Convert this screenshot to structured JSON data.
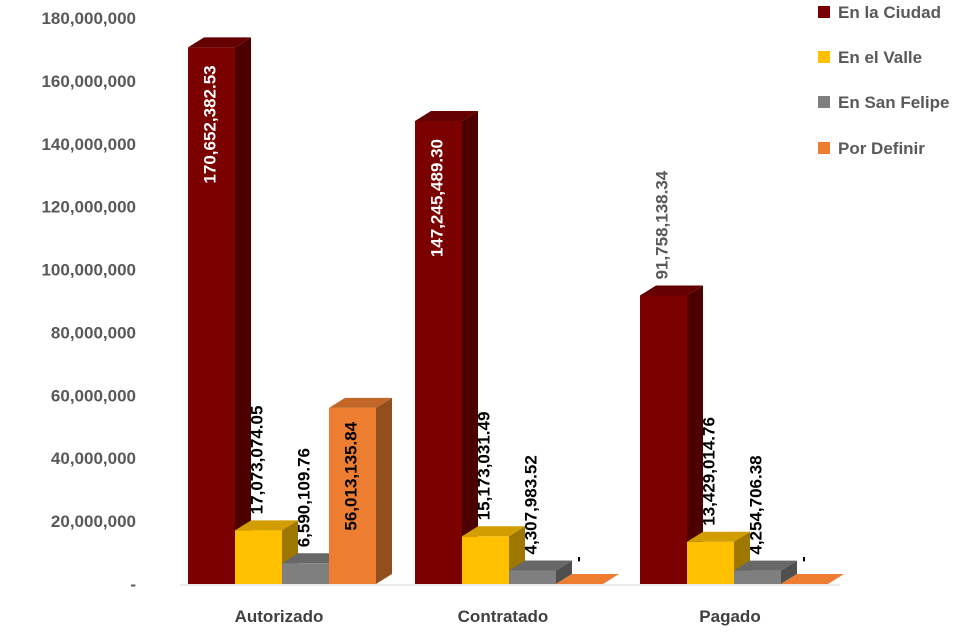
{
  "chart_data": {
    "type": "bar",
    "title": "",
    "xlabel": "",
    "ylabel": "",
    "ylim": [
      0,
      180000000
    ],
    "yticks": [
      {
        "value": 0,
        "label": "-"
      },
      {
        "value": 20000000,
        "label": "20,000,000"
      },
      {
        "value": 40000000,
        "label": "40,000,000"
      },
      {
        "value": 60000000,
        "label": "60,000,000"
      },
      {
        "value": 80000000,
        "label": "80,000,000"
      },
      {
        "value": 100000000,
        "label": "100,000,000"
      },
      {
        "value": 120000000,
        "label": "120,000,000"
      },
      {
        "value": 140000000,
        "label": "140,000,000"
      },
      {
        "value": 160000000,
        "label": "160,000,000"
      },
      {
        "value": 180000000,
        "label": "180,000,000"
      }
    ],
    "categories": [
      "Autorizado",
      "Contratado",
      "Pagado"
    ],
    "legend_position": "top-right",
    "grid": false,
    "series": [
      {
        "name": "En la Ciudad",
        "color": "#7B0000",
        "values": [
          170652382.53,
          147245489.3,
          91758138.34
        ],
        "labels": [
          "170,652,382.53",
          "147,245,489.30",
          "91,758,138.34"
        ]
      },
      {
        "name": "En el Valle",
        "color": "#FFC000",
        "values": [
          17073074.05,
          15173031.49,
          13429014.76
        ],
        "labels": [
          "17,073,074.05",
          "15,173,031.49",
          "13,429,014.76"
        ]
      },
      {
        "name": "En San Felipe",
        "color": "#7F7F7F",
        "values": [
          6590109.76,
          4307983.52,
          4254706.38
        ],
        "labels": [
          "6,590,109.76",
          "4,307,983.52",
          "4,254,706.38"
        ]
      },
      {
        "name": "Por Definir",
        "color": "#ED7D31",
        "values": [
          56013135.84,
          0,
          0
        ],
        "labels": [
          "56,013,135.84",
          "-",
          "-"
        ]
      }
    ]
  }
}
